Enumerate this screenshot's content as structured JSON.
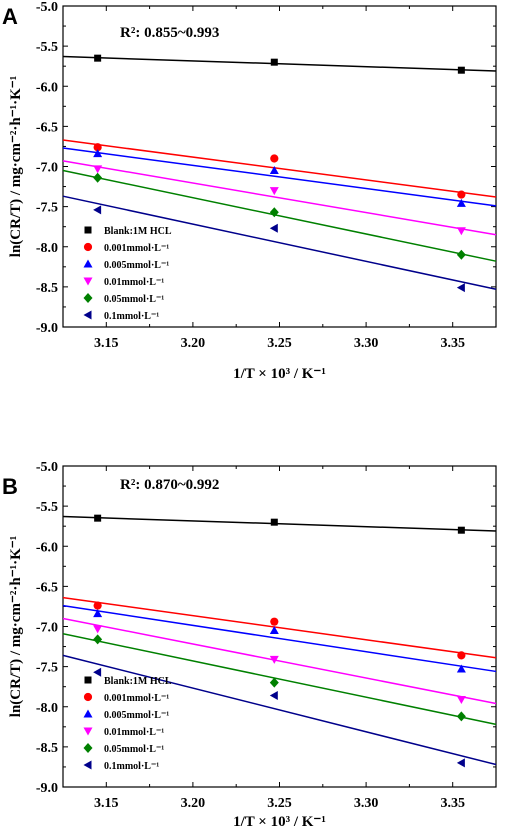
{
  "chart_data": [
    {
      "panel": "A",
      "type": "scatter",
      "annotation": "R²: 0.855~0.993",
      "xlabel": "1/T × 10³ / K⁻¹",
      "ylabel": "ln(CR/T) / mg·cm⁻²·h⁻¹·K⁻¹",
      "xlim": [
        3.125,
        3.375
      ],
      "ylim": [
        -9.0,
        -5.0
      ],
      "xticks": [
        "3.15",
        "3.20",
        "3.25",
        "3.30",
        "3.35"
      ],
      "yticks": [
        "-5.0",
        "-5.5",
        "-6.0",
        "-6.5",
        "-7.0",
        "-7.5",
        "-8.0",
        "-8.5",
        "-9.0"
      ],
      "x": [
        3.145,
        3.247,
        3.355
      ],
      "legend": "middle-left",
      "series": [
        {
          "name": "Blank:1M HCL",
          "color": "#000000",
          "marker": "square",
          "values": [
            -5.65,
            -5.7,
            -5.8
          ],
          "fit": [
            -5.63,
            -5.81
          ]
        },
        {
          "name": "0.001mmol·L⁻¹",
          "color": "#ff0000",
          "marker": "circle",
          "values": [
            -6.76,
            -6.9,
            -7.35
          ],
          "fit": [
            -6.67,
            -7.38
          ]
        },
        {
          "name": "0.005mmol·L⁻¹",
          "color": "#0000ff",
          "marker": "triangle-up",
          "values": [
            -6.84,
            -7.05,
            -7.46
          ],
          "fit": [
            -6.77,
            -7.49
          ]
        },
        {
          "name": "0.01mmol·L⁻¹",
          "color": "#ff00ff",
          "marker": "triangle-down",
          "values": [
            -7.03,
            -7.3,
            -7.8
          ],
          "fit": [
            -6.93,
            -7.85
          ]
        },
        {
          "name": "0.05mmol·L⁻¹",
          "color": "#008000",
          "marker": "diamond",
          "values": [
            -7.14,
            -7.57,
            -8.1
          ],
          "fit": [
            -7.05,
            -8.18
          ]
        },
        {
          "name": "0.1mmol·L⁻¹",
          "color": "#00008b",
          "marker": "triangle-left",
          "values": [
            -7.54,
            -7.77,
            -8.51
          ],
          "fit": [
            -7.37,
            -8.53
          ]
        }
      ]
    },
    {
      "panel": "B",
      "type": "scatter",
      "annotation": "R²: 0.870~0.992",
      "xlabel": "1/T × 10³ / K⁻¹",
      "ylabel": "ln(CR/T) / mg·cm⁻²·h⁻¹·K⁻¹",
      "xlim": [
        3.125,
        3.375
      ],
      "ylim": [
        -9.0,
        -5.0
      ],
      "xticks": [
        "3.15",
        "3.20",
        "3.25",
        "3.30",
        "3.35"
      ],
      "yticks": [
        "-5.0",
        "-5.5",
        "-6.0",
        "-6.5",
        "-7.0",
        "-7.5",
        "-8.0",
        "-8.5",
        "-9.0"
      ],
      "x": [
        3.145,
        3.247,
        3.355
      ],
      "legend": "middle-left",
      "series": [
        {
          "name": "Blank:1M HCL",
          "color": "#000000",
          "marker": "square",
          "values": [
            -5.65,
            -5.7,
            -5.8
          ],
          "fit": [
            -5.63,
            -5.81
          ]
        },
        {
          "name": "0.001mmol·L⁻¹",
          "color": "#ff0000",
          "marker": "circle",
          "values": [
            -6.74,
            -6.94,
            -7.36
          ],
          "fit": [
            -6.64,
            -7.39
          ]
        },
        {
          "name": "0.005mmol·L⁻¹",
          "color": "#0000ff",
          "marker": "triangle-up",
          "values": [
            -6.84,
            -7.05,
            -7.53
          ],
          "fit": [
            -6.74,
            -7.56
          ]
        },
        {
          "name": "0.01mmol·L⁻¹",
          "color": "#ff00ff",
          "marker": "triangle-down",
          "values": [
            -7.03,
            -7.41,
            -7.91
          ],
          "fit": [
            -6.9,
            -7.96
          ]
        },
        {
          "name": "0.05mmol·L⁻¹",
          "color": "#008000",
          "marker": "diamond",
          "values": [
            -7.16,
            -7.7,
            -8.12
          ],
          "fit": [
            -7.09,
            -8.22
          ]
        },
        {
          "name": "0.1mmol·L⁻¹",
          "color": "#00008b",
          "marker": "triangle-left",
          "values": [
            -7.57,
            -7.86,
            -8.7
          ],
          "fit": [
            -7.36,
            -8.72
          ]
        }
      ]
    }
  ]
}
